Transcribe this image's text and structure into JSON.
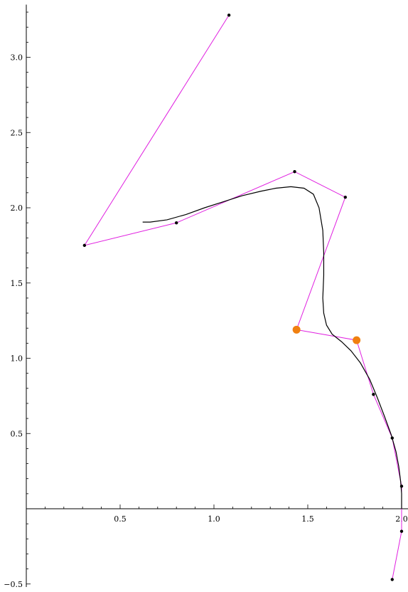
{
  "chart_data": {
    "type": "line",
    "title": "",
    "xlabel": "",
    "ylabel": "",
    "xlim": [
      0.0,
      2.04
    ],
    "ylim": [
      -0.52,
      3.35
    ],
    "x_ticks": [
      {
        "value": 0.5,
        "label": "0.5"
      },
      {
        "value": 1.0,
        "label": "1.0"
      },
      {
        "value": 1.5,
        "label": "1.5"
      },
      {
        "value": 2.0,
        "label": "2.0"
      }
    ],
    "y_ticks": [
      {
        "value": -0.5,
        "label": "−0.5"
      },
      {
        "value": 0.5,
        "label": "0.5"
      },
      {
        "value": 1.0,
        "label": "1.0"
      },
      {
        "value": 1.5,
        "label": "1.5"
      },
      {
        "value": 2.0,
        "label": "2.0"
      },
      {
        "value": 2.5,
        "label": "2.5"
      },
      {
        "value": 3.0,
        "label": "3.0"
      }
    ],
    "x_minor_step": 0.1,
    "y_minor_step": 0.1,
    "grid": false,
    "control_polygon": {
      "color": "#e020e0",
      "points": [
        [
          1.08,
          3.28
        ],
        [
          0.31,
          1.75
        ],
        [
          0.8,
          1.9
        ],
        [
          1.43,
          2.24
        ],
        [
          1.7,
          2.07
        ],
        [
          1.44,
          1.19
        ],
        [
          1.76,
          1.12
        ],
        [
          1.85,
          0.76
        ],
        [
          1.95,
          0.47
        ],
        [
          2.0,
          0.15
        ],
        [
          2.0,
          -0.15
        ],
        [
          1.95,
          -0.47
        ]
      ],
      "highlighted_indices": [
        5,
        6
      ],
      "highlight_color": "#f08010",
      "point_color": "#000000"
    },
    "curve": {
      "color": "#000000",
      "points": [
        [
          0.62,
          1.905
        ],
        [
          0.66,
          1.905
        ],
        [
          0.75,
          1.92
        ],
        [
          0.85,
          1.955
        ],
        [
          0.95,
          2.0
        ],
        [
          1.05,
          2.04
        ],
        [
          1.15,
          2.08
        ],
        [
          1.25,
          2.11
        ],
        [
          1.33,
          2.13
        ],
        [
          1.41,
          2.14
        ],
        [
          1.48,
          2.13
        ],
        [
          1.53,
          2.09
        ],
        [
          1.56,
          2.0
        ],
        [
          1.58,
          1.85
        ],
        [
          1.585,
          1.7
        ],
        [
          1.585,
          1.55
        ],
        [
          1.58,
          1.4
        ],
        [
          1.585,
          1.3
        ],
        [
          1.6,
          1.22
        ],
        [
          1.63,
          1.16
        ],
        [
          1.68,
          1.11
        ],
        [
          1.73,
          1.05
        ],
        [
          1.78,
          0.97
        ],
        [
          1.83,
          0.86
        ],
        [
          1.87,
          0.74
        ],
        [
          1.91,
          0.61
        ],
        [
          1.945,
          0.49
        ],
        [
          1.97,
          0.38
        ],
        [
          1.985,
          0.28
        ],
        [
          1.995,
          0.18
        ],
        [
          2.0,
          0.1
        ],
        [
          2.0,
          0.0
        ]
      ]
    }
  }
}
